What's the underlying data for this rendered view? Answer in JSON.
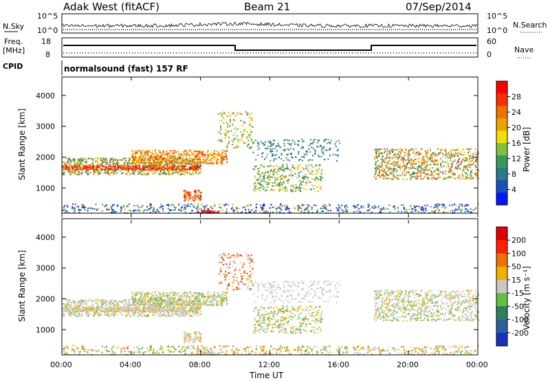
{
  "header": {
    "station": "Adak West (fitACF)",
    "beam": "Beam 21",
    "date": "07/Sep/2014"
  },
  "top_panels": {
    "nsky_label": "N.Sky",
    "nsky_ticks": [
      "10^5",
      "10^0"
    ],
    "nsearch_label": "N.Search",
    "nsearch_ticks": [
      "10^5",
      "10^0"
    ],
    "freq_label": "Freq.",
    "freq_unit": "[MHz]",
    "freq_ticks": [
      "18",
      "8"
    ],
    "nave_label": "Nave",
    "nave_ticks": [
      "60",
      "0"
    ],
    "cpid_label": "CPID",
    "cpid_value": "normalsound (fast) 157 RF"
  },
  "chart_data": [
    {
      "type": "heatmap",
      "name": "power",
      "ylabel": "Slant Range [km]",
      "yticks": [
        "4000",
        "3000",
        "2000",
        "1000"
      ],
      "ylim": [
        180,
        4600
      ],
      "colorbar_label": "Power [dB]",
      "colorbar_ticks": [
        "28",
        "24",
        "20",
        "16",
        "12",
        "8",
        "4"
      ],
      "colorbar_colors": [
        "#0018ff",
        "#1850c0",
        "#2a7a8a",
        "#3a9a5a",
        "#80c040",
        "#f0e000",
        "#f0a000",
        "#f07000",
        "#ff3000",
        "#ff0000"
      ]
    },
    {
      "type": "heatmap",
      "name": "velocity",
      "ylabel": "Slant Range [km]",
      "yticks": [
        "4000",
        "3000",
        "2000",
        "1000"
      ],
      "ylim": [
        180,
        4600
      ],
      "colorbar_label": "Velocity [m s⁻¹]",
      "colorbar_ticks": [
        "200",
        "100",
        "50",
        "15",
        "-15",
        "-50",
        "-100",
        "-200"
      ],
      "colorbar_colors": [
        "#1830c0",
        "#2a60a0",
        "#2a8060",
        "#60c040",
        "#c8c8c8",
        "#f0b000",
        "#f07000",
        "#ff2000",
        "#e00000"
      ]
    }
  ],
  "time_axis": {
    "xlabel": "Time UT",
    "ticks": [
      "00:00",
      "04:00",
      "08:00",
      "12:00",
      "16:00",
      "20:00",
      "00:00"
    ],
    "xlim": [
      0,
      24
    ]
  }
}
